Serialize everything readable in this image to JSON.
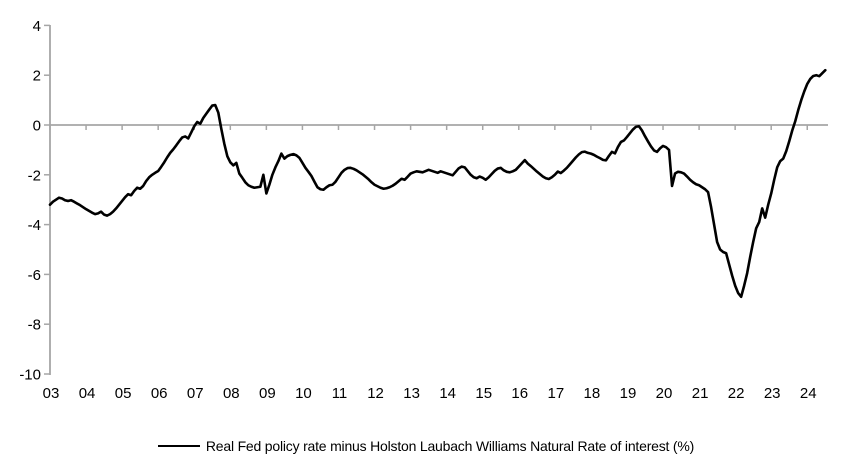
{
  "chart_data": {
    "type": "line",
    "title": "",
    "grid": false,
    "legend_position": "bottom",
    "background_color": "#FFFFFF",
    "axis_color": "#A6A6A6",
    "line_color": "#000000",
    "ylim": [
      -10,
      4
    ],
    "y_ticks": [
      4,
      2,
      0,
      -2,
      -4,
      -6,
      -8,
      -10
    ],
    "x_tick_labels": [
      "03",
      "04",
      "05",
      "06",
      "07",
      "08",
      "09",
      "10",
      "11",
      "12",
      "13",
      "14",
      "15",
      "16",
      "17",
      "18",
      "19",
      "20",
      "21",
      "22",
      "23",
      "24"
    ],
    "x_start_year": 2003,
    "x_step_months": 1,
    "zero_line": true,
    "series": [
      {
        "name": "Real Fed policy rate minus Holston Laubach Williams Natural Rate of interest (%)",
        "values": [
          -3.2,
          -3.08,
          -3.0,
          -2.92,
          -2.95,
          -3.02,
          -3.05,
          -3.02,
          -3.08,
          -3.15,
          -3.22,
          -3.3,
          -3.38,
          -3.45,
          -3.52,
          -3.58,
          -3.55,
          -3.48,
          -3.6,
          -3.64,
          -3.58,
          -3.48,
          -3.35,
          -3.2,
          -3.05,
          -2.9,
          -2.78,
          -2.82,
          -2.65,
          -2.52,
          -2.56,
          -2.45,
          -2.25,
          -2.1,
          -2.0,
          -1.92,
          -1.85,
          -1.68,
          -1.5,
          -1.3,
          -1.12,
          -0.98,
          -0.82,
          -0.65,
          -0.5,
          -0.46,
          -0.54,
          -0.3,
          -0.05,
          0.12,
          0.05,
          0.28,
          0.45,
          0.62,
          0.78,
          0.8,
          0.5,
          -0.15,
          -0.75,
          -1.25,
          -1.5,
          -1.62,
          -1.52,
          -1.95,
          -2.12,
          -2.3,
          -2.42,
          -2.48,
          -2.52,
          -2.5,
          -2.48,
          -2.0,
          -2.75,
          -2.4,
          -2.0,
          -1.7,
          -1.45,
          -1.15,
          -1.35,
          -1.25,
          -1.2,
          -1.17,
          -1.22,
          -1.32,
          -1.52,
          -1.72,
          -1.88,
          -2.05,
          -2.28,
          -2.5,
          -2.58,
          -2.6,
          -2.5,
          -2.42,
          -2.4,
          -2.28,
          -2.1,
          -1.92,
          -1.8,
          -1.73,
          -1.72,
          -1.76,
          -1.82,
          -1.9,
          -1.98,
          -2.08,
          -2.18,
          -2.3,
          -2.4,
          -2.46,
          -2.52,
          -2.56,
          -2.54,
          -2.5,
          -2.44,
          -2.36,
          -2.26,
          -2.16,
          -2.2,
          -2.08,
          -1.95,
          -1.9,
          -1.86,
          -1.88,
          -1.9,
          -1.85,
          -1.8,
          -1.84,
          -1.88,
          -1.92,
          -1.86,
          -1.9,
          -1.94,
          -1.98,
          -2.02,
          -1.88,
          -1.74,
          -1.67,
          -1.7,
          -1.85,
          -2.0,
          -2.1,
          -2.14,
          -2.07,
          -2.12,
          -2.2,
          -2.1,
          -1.97,
          -1.84,
          -1.75,
          -1.72,
          -1.82,
          -1.88,
          -1.9,
          -1.86,
          -1.8,
          -1.67,
          -1.54,
          -1.41,
          -1.55,
          -1.65,
          -1.76,
          -1.87,
          -1.97,
          -2.07,
          -2.14,
          -2.17,
          -2.1,
          -2.0,
          -1.87,
          -1.93,
          -1.83,
          -1.72,
          -1.58,
          -1.44,
          -1.3,
          -1.18,
          -1.09,
          -1.07,
          -1.12,
          -1.15,
          -1.2,
          -1.27,
          -1.33,
          -1.4,
          -1.42,
          -1.24,
          -1.08,
          -1.14,
          -0.88,
          -0.68,
          -0.62,
          -0.48,
          -0.33,
          -0.18,
          -0.07,
          -0.05,
          -0.22,
          -0.45,
          -0.66,
          -0.86,
          -1.02,
          -1.08,
          -0.94,
          -0.84,
          -0.89,
          -1.0,
          -2.45,
          -1.95,
          -1.88,
          -1.9,
          -1.95,
          -2.07,
          -2.2,
          -2.3,
          -2.38,
          -2.42,
          -2.5,
          -2.58,
          -2.7,
          -3.3,
          -4.0,
          -4.7,
          -5.0,
          -5.1,
          -5.15,
          -5.6,
          -6.05,
          -6.45,
          -6.75,
          -6.9,
          -6.45,
          -5.95,
          -5.3,
          -4.7,
          -4.15,
          -3.9,
          -3.35,
          -3.72,
          -3.2,
          -2.75,
          -2.2,
          -1.7,
          -1.45,
          -1.35,
          -1.05,
          -0.65,
          -0.22,
          0.15,
          0.6,
          1.0,
          1.35,
          1.65,
          1.85,
          1.97,
          2.0,
          1.96,
          2.08,
          2.2
        ]
      }
    ]
  }
}
